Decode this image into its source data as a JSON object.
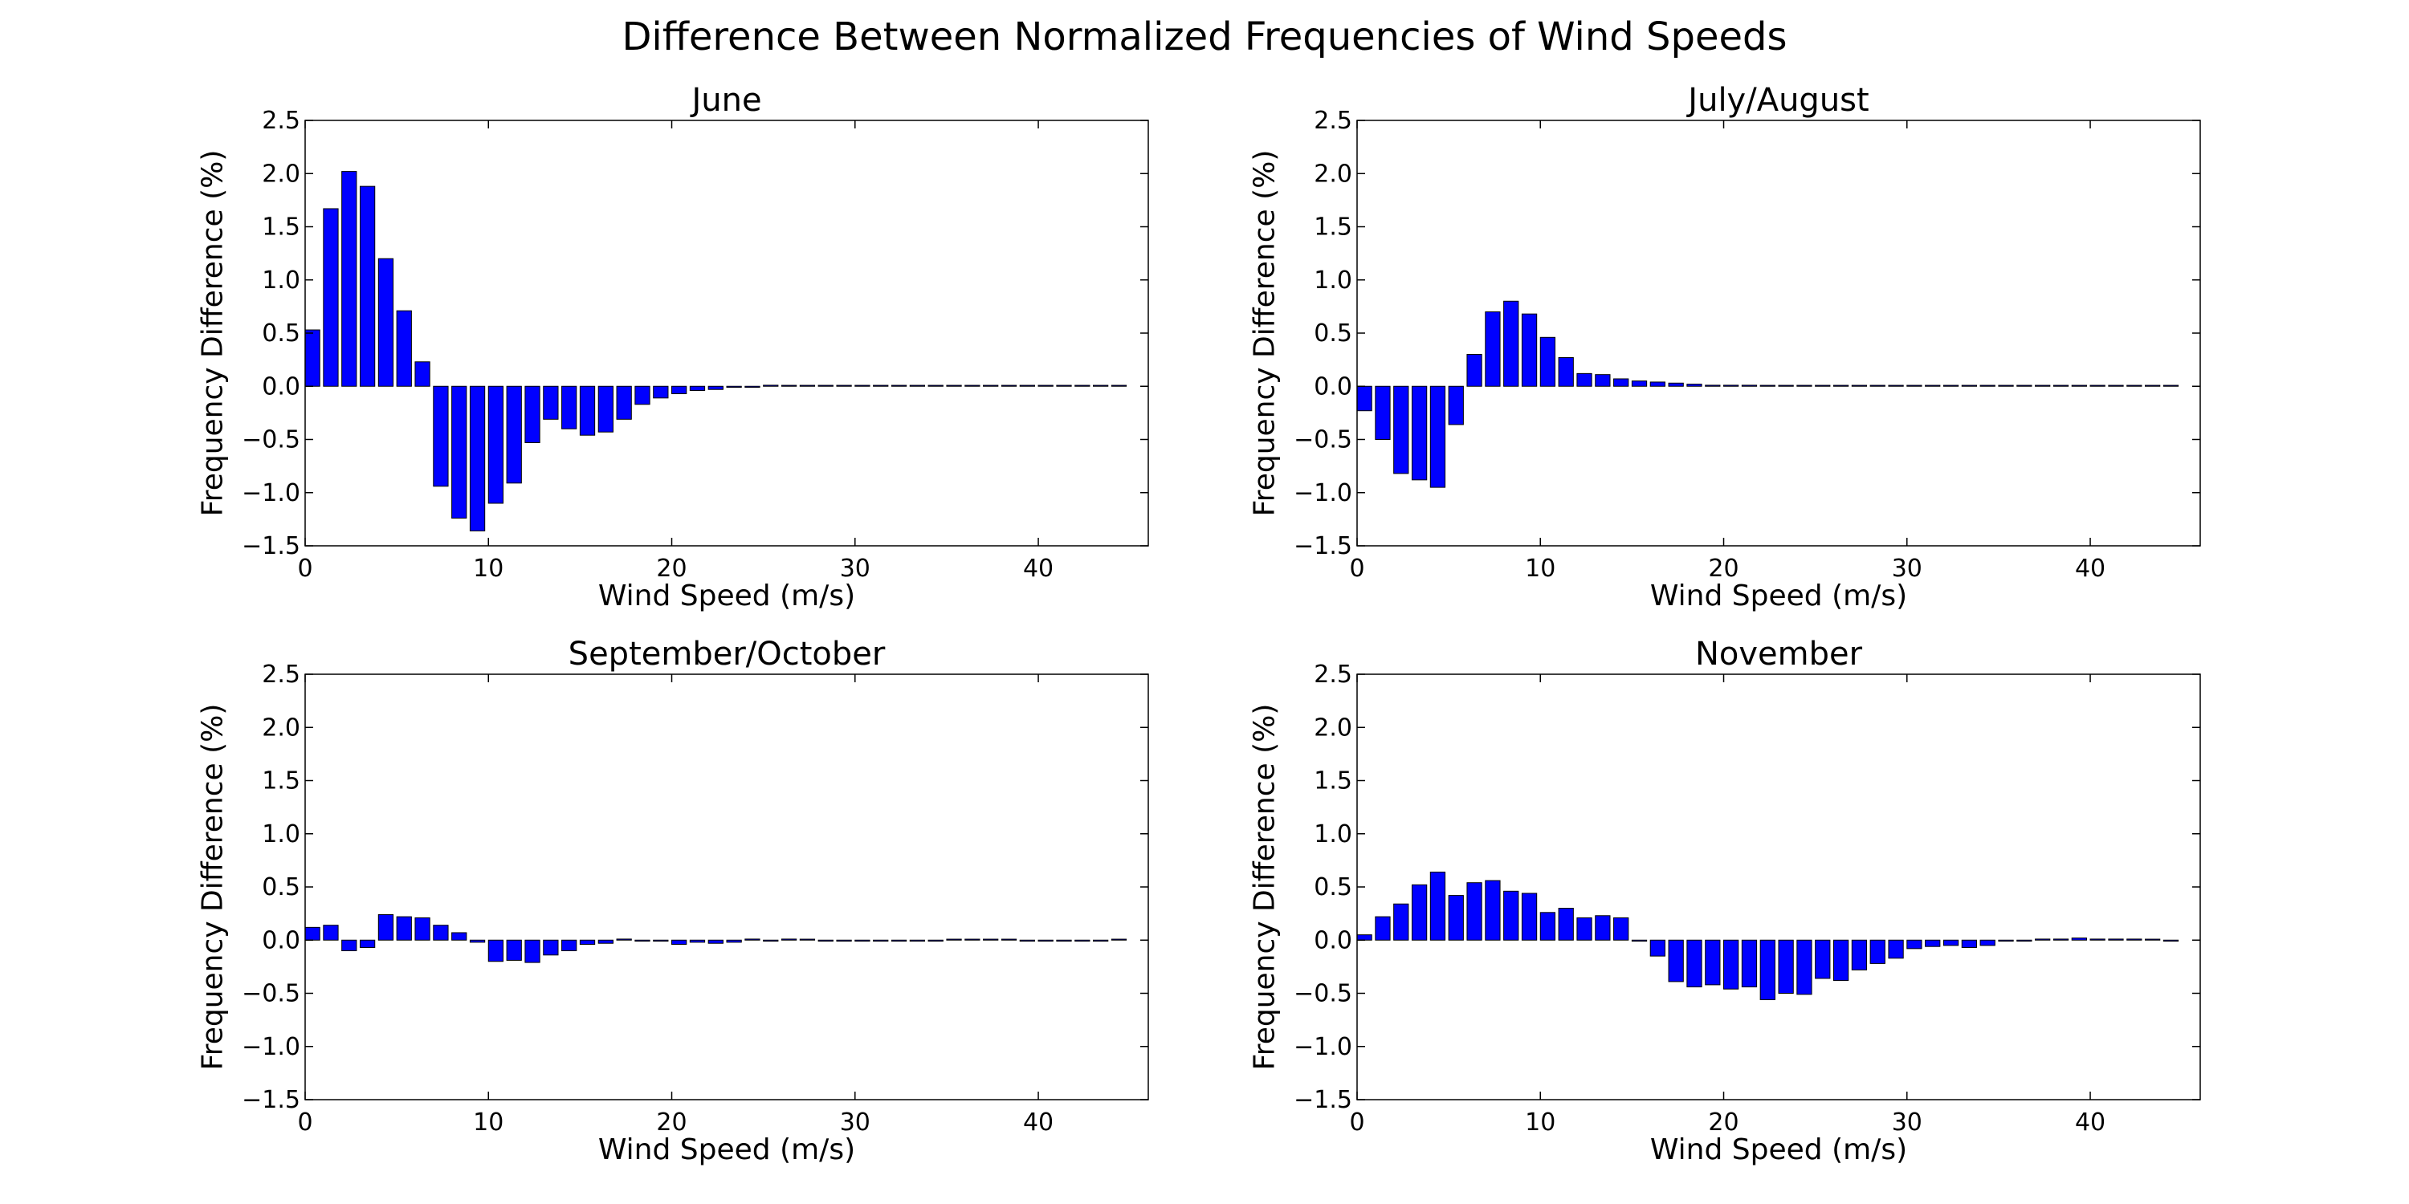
{
  "figure": {
    "title": "Difference Between Normalized Frequencies of Wind Speeds"
  },
  "chart_data": [
    {
      "type": "bar",
      "title": "June",
      "xlabel": "Wind Speed (m/s)",
      "ylabel": "Frequency Difference (%)",
      "xlim": [
        0,
        46
      ],
      "ylim": [
        -1.5,
        2.5
      ],
      "xticks": [
        0,
        10,
        20,
        30,
        40
      ],
      "yticks": [
        -1.5,
        -1.0,
        -0.5,
        0.0,
        0.5,
        1.0,
        1.5,
        2.0,
        2.5
      ],
      "grid": false,
      "bar_color": "#0000ff",
      "x": [
        0,
        1,
        2,
        3,
        4,
        5,
        6,
        7,
        8,
        9,
        10,
        11,
        12,
        13,
        14,
        15,
        16,
        17,
        18,
        19,
        20,
        21,
        22,
        23,
        24,
        25,
        26,
        27,
        28,
        29,
        30,
        31,
        32,
        33,
        34,
        35,
        36,
        37,
        38,
        39,
        40,
        41,
        42,
        43,
        44
      ],
      "values": [
        0.53,
        1.67,
        2.02,
        1.88,
        1.2,
        0.71,
        0.23,
        -0.94,
        -1.24,
        -1.36,
        -1.1,
        -0.91,
        -0.53,
        -0.31,
        -0.4,
        -0.46,
        -0.43,
        -0.31,
        -0.17,
        -0.11,
        -0.07,
        -0.04,
        -0.03,
        -0.01,
        -0.01,
        0.01,
        0.0,
        0.0,
        0.0,
        0.0,
        0.0,
        0.0,
        0.0,
        0.0,
        0.0,
        0.0,
        0.0,
        0.0,
        0.0,
        0.0,
        0.0,
        0.0,
        0.0,
        0.0,
        0.0
      ]
    },
    {
      "type": "bar",
      "title": "July/August",
      "xlabel": "Wind Speed (m/s)",
      "ylabel": "Frequency Difference (%)",
      "xlim": [
        0,
        46
      ],
      "ylim": [
        -1.5,
        2.5
      ],
      "xticks": [
        0,
        10,
        20,
        30,
        40
      ],
      "yticks": [
        -1.5,
        -1.0,
        -0.5,
        0.0,
        0.5,
        1.0,
        1.5,
        2.0,
        2.5
      ],
      "grid": false,
      "bar_color": "#0000ff",
      "x": [
        0,
        1,
        2,
        3,
        4,
        5,
        6,
        7,
        8,
        9,
        10,
        11,
        12,
        13,
        14,
        15,
        16,
        17,
        18,
        19,
        20,
        21,
        22,
        23,
        24,
        25,
        26,
        27,
        28,
        29,
        30,
        31,
        32,
        33,
        34,
        35,
        36,
        37,
        38,
        39,
        40,
        41,
        42,
        43,
        44
      ],
      "values": [
        -0.23,
        -0.5,
        -0.82,
        -0.88,
        -0.95,
        -0.36,
        0.3,
        0.7,
        0.8,
        0.68,
        0.46,
        0.27,
        0.12,
        0.11,
        0.07,
        0.05,
        0.04,
        0.03,
        0.02,
        0.01,
        0.01,
        0.01,
        0.0,
        0.0,
        0.0,
        0.0,
        0.0,
        0.0,
        0.0,
        0.0,
        0.0,
        0.0,
        0.0,
        0.0,
        0.0,
        0.0,
        0.0,
        0.0,
        0.0,
        0.0,
        0.0,
        0.0,
        0.0,
        0.0,
        0.0
      ]
    },
    {
      "type": "bar",
      "title": "September/October",
      "xlabel": "Wind Speed (m/s)",
      "ylabel": "Frequency Difference (%)",
      "xlim": [
        0,
        46
      ],
      "ylim": [
        -1.5,
        2.5
      ],
      "xticks": [
        0,
        10,
        20,
        30,
        40
      ],
      "yticks": [
        -1.5,
        -1.0,
        -0.5,
        0.0,
        0.5,
        1.0,
        1.5,
        2.0,
        2.5
      ],
      "grid": false,
      "bar_color": "#0000ff",
      "x": [
        0,
        1,
        2,
        3,
        4,
        5,
        6,
        7,
        8,
        9,
        10,
        11,
        12,
        13,
        14,
        15,
        16,
        17,
        18,
        19,
        20,
        21,
        22,
        23,
        24,
        25,
        26,
        27,
        28,
        29,
        30,
        31,
        32,
        33,
        34,
        35,
        36,
        37,
        38,
        39,
        40,
        41,
        42,
        43,
        44
      ],
      "values": [
        0.12,
        0.14,
        -0.1,
        -0.07,
        0.24,
        0.22,
        0.21,
        0.14,
        0.07,
        -0.02,
        -0.2,
        -0.19,
        -0.21,
        -0.14,
        -0.1,
        -0.04,
        -0.03,
        0.01,
        -0.01,
        -0.01,
        -0.04,
        -0.02,
        -0.03,
        -0.02,
        0.01,
        -0.01,
        0.01,
        0.0,
        -0.01,
        -0.01,
        -0.01,
        -0.01,
        -0.01,
        -0.01,
        -0.01,
        0.0,
        0.0,
        0.0,
        0.0,
        -0.01,
        -0.01,
        -0.01,
        -0.01,
        -0.01,
        0.0
      ]
    },
    {
      "type": "bar",
      "title": "November",
      "xlabel": "Wind Speed (m/s)",
      "ylabel": "Frequency Difference (%)",
      "xlim": [
        0,
        46
      ],
      "ylim": [
        -1.5,
        2.5
      ],
      "xticks": [
        0,
        10,
        20,
        30,
        40
      ],
      "yticks": [
        -1.5,
        -1.0,
        -0.5,
        0.0,
        0.5,
        1.0,
        1.5,
        2.0,
        2.5
      ],
      "grid": false,
      "bar_color": "#0000ff",
      "x": [
        0,
        1,
        2,
        3,
        4,
        5,
        6,
        7,
        8,
        9,
        10,
        11,
        12,
        13,
        14,
        15,
        16,
        17,
        18,
        19,
        20,
        21,
        22,
        23,
        24,
        25,
        26,
        27,
        28,
        29,
        30,
        31,
        32,
        33,
        34,
        35,
        36,
        37,
        38,
        39,
        40,
        41,
        42,
        43,
        44
      ],
      "values": [
        0.05,
        0.22,
        0.34,
        0.52,
        0.64,
        0.42,
        0.54,
        0.56,
        0.46,
        0.44,
        0.26,
        0.3,
        0.21,
        0.23,
        0.21,
        -0.01,
        -0.15,
        -0.39,
        -0.44,
        -0.42,
        -0.46,
        -0.44,
        -0.56,
        -0.5,
        -0.51,
        -0.36,
        -0.38,
        -0.28,
        -0.22,
        -0.17,
        -0.08,
        -0.06,
        -0.05,
        -0.07,
        -0.05,
        -0.01,
        -0.01,
        0.01,
        0.01,
        0.02,
        0.01,
        0.01,
        0.01,
        0.0,
        -0.01
      ]
    }
  ]
}
